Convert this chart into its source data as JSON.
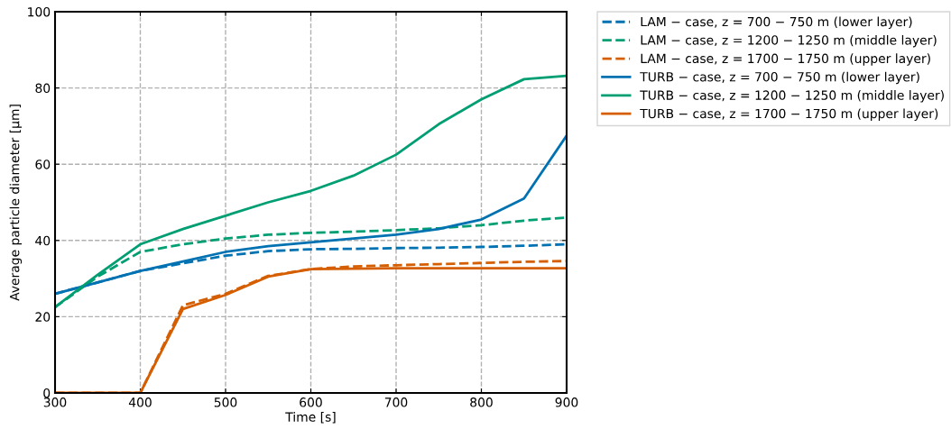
{
  "chart_data": {
    "type": "line",
    "xlabel": "Time [s]",
    "ylabel": "Average particle diameter [µm]",
    "x": [
      300,
      350,
      400,
      450,
      500,
      550,
      600,
      650,
      700,
      750,
      800,
      850,
      900
    ],
    "xlim": [
      300,
      900
    ],
    "xticks": [
      300,
      400,
      500,
      600,
      700,
      800,
      900
    ],
    "ylim": [
      0,
      100
    ],
    "yticks": [
      0,
      20,
      40,
      60,
      80,
      100
    ],
    "grid": true,
    "legend": "top right",
    "marker": "none",
    "series": [
      {
        "name": "LAM − case, z = 700 − 750 m (lower layer)",
        "color": "#0072b2",
        "line_style": "dashed",
        "values": [
          26,
          29,
          32,
          34,
          36,
          37.2,
          37.7,
          37.8,
          38,
          38.1,
          38.3,
          38.6,
          39
        ]
      },
      {
        "name": "LAM − case, z = 1200 − 1250 m (middle layer)",
        "color": "#009e73",
        "line_style": "dashed",
        "values": [
          22.5,
          30.5,
          37,
          39,
          40.5,
          41.5,
          42,
          42.3,
          42.7,
          43.2,
          44,
          45.2,
          46
        ]
      },
      {
        "name": "LAM − case, z = 1700 − 1750 m (upper layer)",
        "color": "#d55e00",
        "line_style": "dashed",
        "values": [
          0,
          0,
          0,
          23,
          26,
          30.7,
          32.5,
          33.2,
          33.5,
          33.8,
          34.1,
          34.4,
          34.6
        ]
      },
      {
        "name": "TURB − case, z = 700 − 750 m (lower layer)",
        "color": "#0072b2",
        "line_style": "solid",
        "values": [
          26,
          29,
          32,
          34.5,
          37,
          38.5,
          39.5,
          40.5,
          41.5,
          43,
          45.5,
          51,
          67.5
        ]
      },
      {
        "name": "TURB − case, z = 1200 − 1250 m (middle layer)",
        "color": "#009e73",
        "line_style": "solid",
        "values": [
          22.5,
          31,
          39,
          43,
          46.5,
          50,
          53,
          57,
          62.5,
          70.5,
          77,
          82.3,
          83.2
        ]
      },
      {
        "name": "TURB − case, z = 1700 − 1750 m (upper layer)",
        "color": "#d55e00",
        "line_style": "solid",
        "values": [
          0,
          0,
          0,
          22,
          25.7,
          30.5,
          32.5,
          32.6,
          32.7,
          32.7,
          32.7,
          32.7,
          32.7
        ]
      }
    ]
  }
}
